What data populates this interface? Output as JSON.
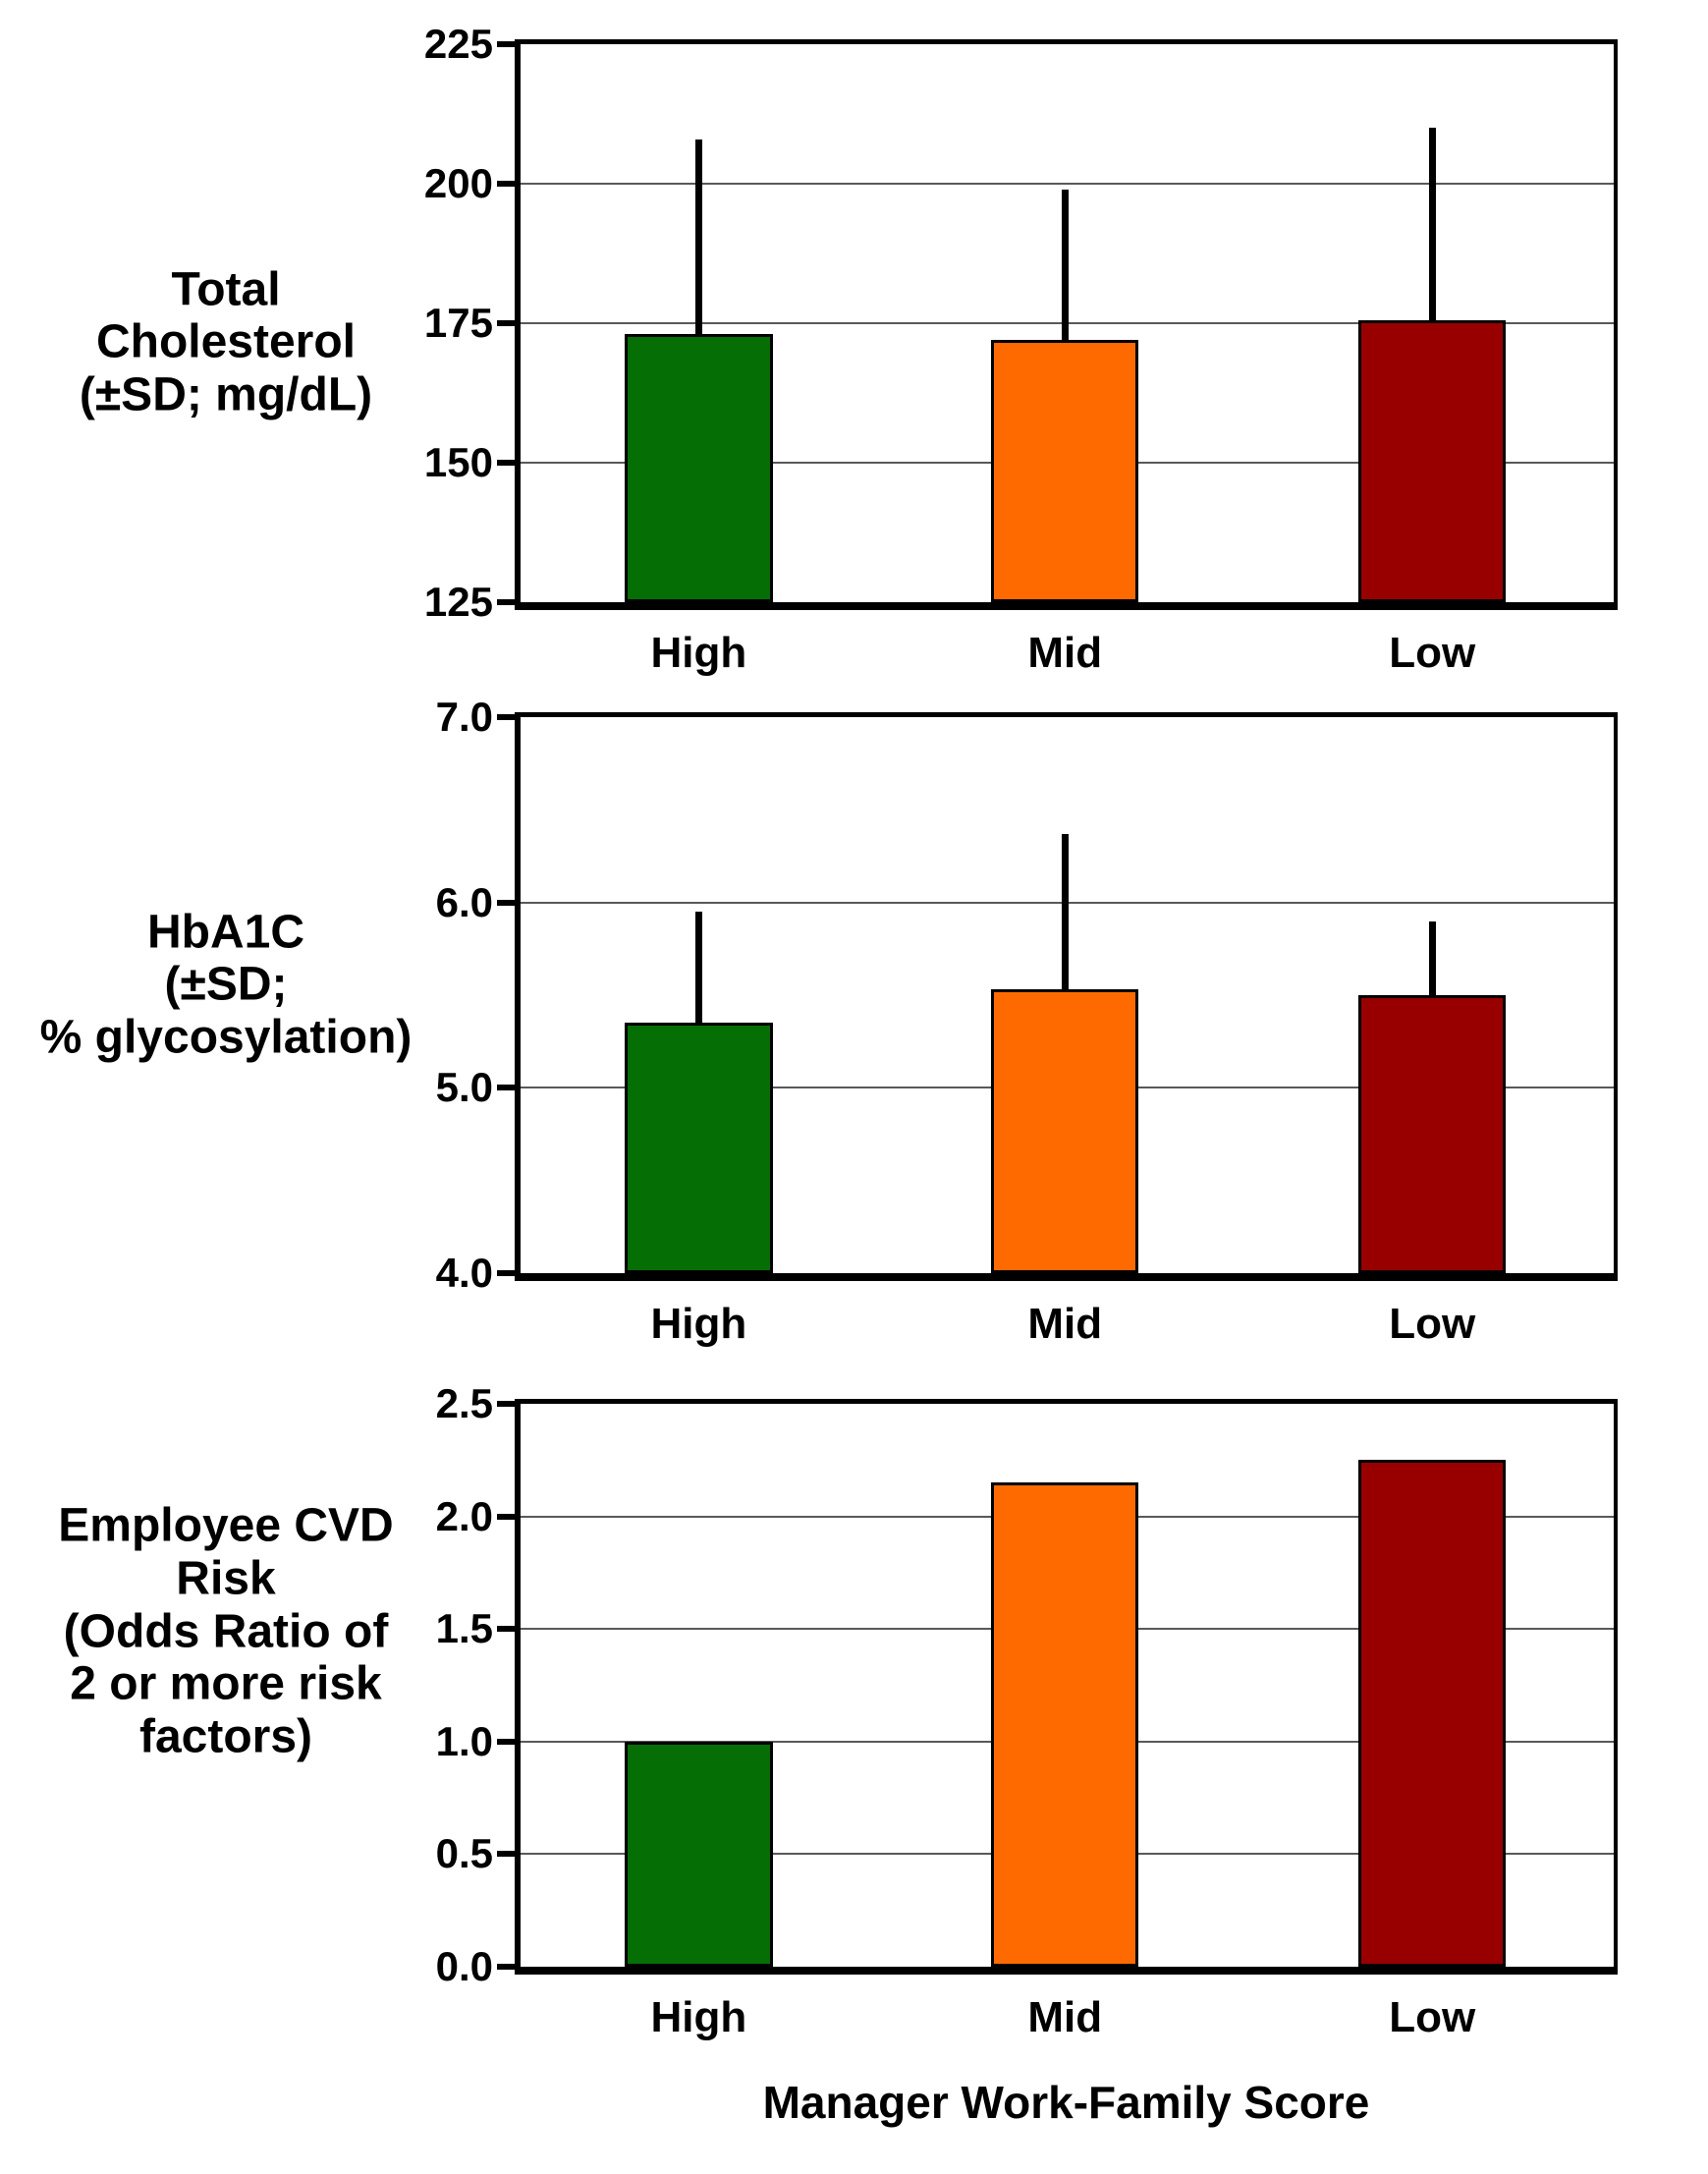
{
  "figure": {
    "x_axis_title": "Manager Work-Family Score",
    "categories": [
      "High",
      "Mid",
      "Low"
    ],
    "colors": {
      "high": "#056E05",
      "mid": "#FF6A00",
      "low": "#980000"
    }
  },
  "chart_data": [
    {
      "type": "bar",
      "title": "Total Cholesterol (±SD; mg/dL)",
      "title_lines": [
        "Total",
        "Cholesterol",
        "(±SD; mg/dL)"
      ],
      "categories": [
        "High",
        "Mid",
        "Low"
      ],
      "values": [
        173,
        172,
        175.5
      ],
      "error_upper": [
        208,
        199,
        210
      ],
      "ylim": [
        125,
        225
      ],
      "yticks": [
        125,
        150,
        175,
        200,
        225
      ],
      "ytick_decimals": 0,
      "bar_colors": [
        "#056E05",
        "#FF6A00",
        "#980000"
      ],
      "grid": true,
      "legend": "none"
    },
    {
      "type": "bar",
      "title": "HbA1C (±SD; % glycosylation)",
      "title_lines": [
        "HbA1C",
        "(±SD;",
        "% glycosylation)"
      ],
      "categories": [
        "High",
        "Mid",
        "Low"
      ],
      "values": [
        5.35,
        5.53,
        5.5
      ],
      "error_upper": [
        5.95,
        6.37,
        5.9
      ],
      "ylim": [
        4.0,
        7.0
      ],
      "yticks": [
        4.0,
        5.0,
        6.0,
        7.0
      ],
      "ytick_decimals": 1,
      "bar_colors": [
        "#056E05",
        "#FF6A00",
        "#980000"
      ],
      "grid": true,
      "legend": "none"
    },
    {
      "type": "bar",
      "title": "Employee CVD Risk (Odds Ratio of 2 or more risk factors)",
      "title_lines": [
        "Employee CVD",
        "Risk",
        "(Odds Ratio of",
        "2 or more risk",
        "factors)"
      ],
      "categories": [
        "High",
        "Mid",
        "Low"
      ],
      "values": [
        1.0,
        2.15,
        2.25
      ],
      "error_upper": [
        null,
        null,
        null
      ],
      "ylim": [
        0.0,
        2.5
      ],
      "yticks": [
        0.0,
        0.5,
        1.0,
        1.5,
        2.0,
        2.5
      ],
      "ytick_decimals": 1,
      "bar_colors": [
        "#056E05",
        "#FF6A00",
        "#980000"
      ],
      "grid": true,
      "legend": "none"
    }
  ]
}
